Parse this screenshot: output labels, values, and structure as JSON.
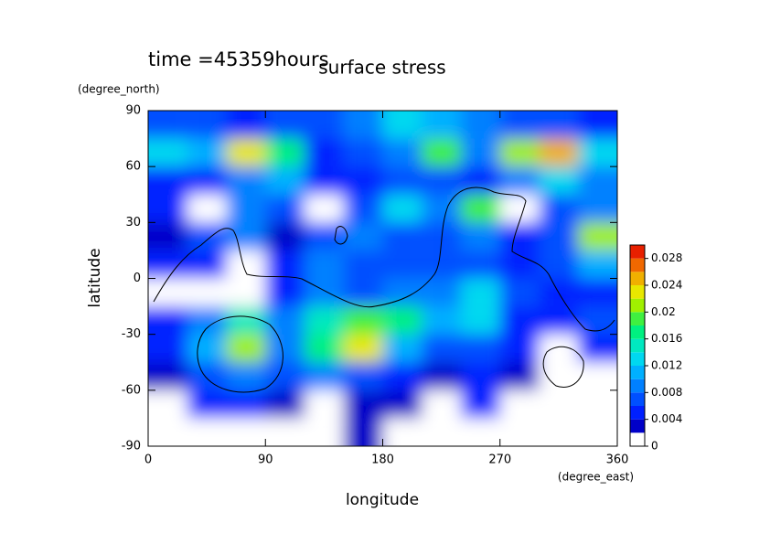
{
  "chart_data": {
    "type": "contour",
    "annotation": "time =45359hours",
    "title": "surface stress",
    "x_label": "longitude",
    "x_units": "(degree_east)",
    "y_label": "latitude",
    "y_units": "(degree_north)",
    "xlim": [
      0,
      360
    ],
    "xticks": [
      0,
      90,
      180,
      270,
      360
    ],
    "ylim": [
      -90,
      90
    ],
    "yticks": [
      -90,
      -60,
      -30,
      0,
      30,
      60,
      90
    ],
    "x": [
      15,
      45,
      75,
      105,
      135,
      165,
      195,
      225,
      255,
      285,
      315,
      345
    ],
    "y": [
      82.5,
      67.5,
      52.5,
      37.5,
      22.5,
      7.5,
      -7.5,
      -22.5,
      -37.5,
      -52.5,
      -67.5,
      -82.5
    ],
    "z": [
      [
        0.006,
        0.006,
        0.005,
        0.006,
        0.007,
        0.008,
        0.012,
        0.01,
        0.008,
        0.006,
        0.006,
        0.004
      ],
      [
        0.012,
        0.01,
        0.022,
        0.016,
        0.004,
        0.006,
        0.008,
        0.018,
        0.008,
        0.02,
        0.024,
        0.012
      ],
      [
        0.004,
        0.004,
        0.008,
        0.01,
        0.004,
        0.004,
        0.006,
        0.006,
        0.004,
        0.008,
        0.012,
        0.008
      ],
      [
        0.004,
        0,
        0.008,
        0.006,
        0,
        0.006,
        0.012,
        0.008,
        0.018,
        0,
        0.006,
        0.008
      ],
      [
        0.002,
        0.006,
        0.008,
        0.002,
        0.006,
        0.008,
        0.006,
        0.006,
        0.008,
        0.004,
        0.006,
        0.02
      ],
      [
        0.004,
        0.004,
        0,
        0.004,
        0.008,
        0.006,
        0.006,
        0.006,
        0.006,
        0.004,
        0.006,
        0.01
      ],
      [
        0,
        0,
        0,
        0.004,
        0.008,
        0.006,
        0.008,
        0.008,
        0.012,
        0.006,
        0.004,
        0.004
      ],
      [
        0.004,
        0.008,
        0.014,
        0.008,
        0.014,
        0.018,
        0.016,
        0.01,
        0.012,
        0.004,
        0.004,
        0.006
      ],
      [
        0.004,
        0.01,
        0.02,
        0.008,
        0.016,
        0.022,
        0.01,
        0.006,
        0.006,
        0.004,
        0,
        0.004
      ],
      [
        0.002,
        0.006,
        0.008,
        0.006,
        0.008,
        0.006,
        0.004,
        0.002,
        0.004,
        0.002,
        0,
        0
      ],
      [
        0,
        0.004,
        0.004,
        0.002,
        0,
        0.002,
        0.002,
        0,
        0.004,
        0,
        0,
        0
      ],
      [
        0,
        0,
        0,
        0,
        0,
        0.002,
        0,
        0,
        0,
        0,
        0,
        0
      ]
    ],
    "levels": [
      0,
      0.002,
      0.004,
      0.006,
      0.008,
      0.01,
      0.012,
      0.014,
      0.016,
      0.018,
      0.02,
      0.022,
      0.024,
      0.026,
      0.028,
      0.03
    ],
    "colors": [
      "#ffffff",
      "#0000c8",
      "#0020ff",
      "#0050ff",
      "#0080ff",
      "#00b0ff",
      "#00d8f0",
      "#00e8c0",
      "#00f080",
      "#40f040",
      "#a0f000",
      "#e8e800",
      "#f0b000",
      "#f06800",
      "#e82000"
    ],
    "colorbar_ticks": [
      0,
      0.004,
      0.008,
      0.012,
      0.016,
      0.02,
      0.024,
      0.028
    ]
  }
}
